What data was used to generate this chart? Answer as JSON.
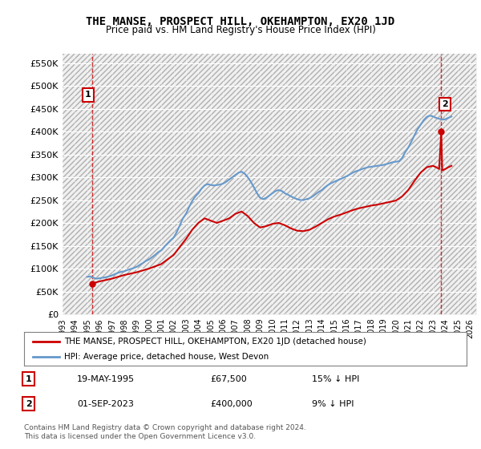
{
  "title": "THE MANSE, PROSPECT HILL, OKEHAMPTON, EX20 1JD",
  "subtitle": "Price paid vs. HM Land Registry's House Price Index (HPI)",
  "ylabel_ticks": [
    "£0",
    "£50K",
    "£100K",
    "£150K",
    "£200K",
    "£250K",
    "£300K",
    "£350K",
    "£400K",
    "£450K",
    "£500K",
    "£550K"
  ],
  "ylim": [
    0,
    570000
  ],
  "xlim_start": 1993.0,
  "xlim_end": 2026.5,
  "background_color": "#ffffff",
  "plot_bg_color": "#f0f0f0",
  "hatch_color": "#d0d0d0",
  "grid_color": "#ffffff",
  "sale1": {
    "date_num": 1995.38,
    "price": 67500,
    "label": "1",
    "color": "#cc0000"
  },
  "sale2": {
    "date_num": 2023.67,
    "price": 400000,
    "label": "2",
    "color": "#cc0000"
  },
  "legend_property": "THE MANSE, PROSPECT HILL, OKEHAMPTON, EX20 1JD (detached house)",
  "legend_hpi": "HPI: Average price, detached house, West Devon",
  "note1_label": "1",
  "note1_date": "19-MAY-1995",
  "note1_price": "£67,500",
  "note1_hpi": "15% ↓ HPI",
  "note2_label": "2",
  "note2_date": "01-SEP-2023",
  "note2_price": "£400,000",
  "note2_hpi": "9% ↓ HPI",
  "copyright": "Contains HM Land Registry data © Crown copyright and database right 2024.\nThis data is licensed under the Open Government Licence v3.0.",
  "line_property_color": "#cc0000",
  "line_hpi_color": "#6699cc",
  "hpi_data": [
    [
      1995.0,
      82000
    ],
    [
      1995.25,
      83000
    ],
    [
      1995.5,
      80000
    ],
    [
      1995.75,
      78000
    ],
    [
      1996.0,
      79000
    ],
    [
      1996.25,
      80000
    ],
    [
      1996.5,
      81000
    ],
    [
      1996.75,
      83000
    ],
    [
      1997.0,
      85000
    ],
    [
      1997.25,
      88000
    ],
    [
      1997.5,
      91000
    ],
    [
      1997.75,
      93000
    ],
    [
      1998.0,
      94000
    ],
    [
      1998.25,
      97000
    ],
    [
      1998.5,
      99000
    ],
    [
      1998.75,
      101000
    ],
    [
      1999.0,
      104000
    ],
    [
      1999.25,
      108000
    ],
    [
      1999.5,
      112000
    ],
    [
      1999.75,
      117000
    ],
    [
      2000.0,
      120000
    ],
    [
      2000.25,
      125000
    ],
    [
      2000.5,
      130000
    ],
    [
      2000.75,
      136000
    ],
    [
      2001.0,
      140000
    ],
    [
      2001.25,
      148000
    ],
    [
      2001.5,
      155000
    ],
    [
      2001.75,
      162000
    ],
    [
      2002.0,
      168000
    ],
    [
      2002.25,
      180000
    ],
    [
      2002.5,
      195000
    ],
    [
      2002.75,
      210000
    ],
    [
      2003.0,
      220000
    ],
    [
      2003.25,
      235000
    ],
    [
      2003.5,
      248000
    ],
    [
      2003.75,
      258000
    ],
    [
      2004.0,
      265000
    ],
    [
      2004.25,
      275000
    ],
    [
      2004.5,
      282000
    ],
    [
      2004.75,
      285000
    ],
    [
      2005.0,
      283000
    ],
    [
      2005.25,
      282000
    ],
    [
      2005.5,
      283000
    ],
    [
      2005.75,
      284000
    ],
    [
      2006.0,
      286000
    ],
    [
      2006.25,
      290000
    ],
    [
      2006.5,
      295000
    ],
    [
      2006.75,
      300000
    ],
    [
      2007.0,
      305000
    ],
    [
      2007.25,
      310000
    ],
    [
      2007.5,
      312000
    ],
    [
      2007.75,
      308000
    ],
    [
      2008.0,
      300000
    ],
    [
      2008.25,
      290000
    ],
    [
      2008.5,
      278000
    ],
    [
      2008.75,
      265000
    ],
    [
      2009.0,
      255000
    ],
    [
      2009.25,
      252000
    ],
    [
      2009.5,
      255000
    ],
    [
      2009.75,
      260000
    ],
    [
      2010.0,
      265000
    ],
    [
      2010.25,
      270000
    ],
    [
      2010.5,
      272000
    ],
    [
      2010.75,
      270000
    ],
    [
      2011.0,
      265000
    ],
    [
      2011.25,
      262000
    ],
    [
      2011.5,
      258000
    ],
    [
      2011.75,
      255000
    ],
    [
      2012.0,
      252000
    ],
    [
      2012.25,
      250000
    ],
    [
      2012.5,
      250000
    ],
    [
      2012.75,
      252000
    ],
    [
      2013.0,
      254000
    ],
    [
      2013.25,
      258000
    ],
    [
      2013.5,
      263000
    ],
    [
      2013.75,
      268000
    ],
    [
      2014.0,
      272000
    ],
    [
      2014.25,
      278000
    ],
    [
      2014.5,
      283000
    ],
    [
      2014.75,
      287000
    ],
    [
      2015.0,
      290000
    ],
    [
      2015.25,
      293000
    ],
    [
      2015.5,
      296000
    ],
    [
      2015.75,
      299000
    ],
    [
      2016.0,
      302000
    ],
    [
      2016.25,
      306000
    ],
    [
      2016.5,
      310000
    ],
    [
      2016.75,
      313000
    ],
    [
      2017.0,
      315000
    ],
    [
      2017.25,
      318000
    ],
    [
      2017.5,
      320000
    ],
    [
      2017.75,
      322000
    ],
    [
      2018.0,
      323000
    ],
    [
      2018.25,
      324000
    ],
    [
      2018.5,
      325000
    ],
    [
      2018.75,
      326000
    ],
    [
      2019.0,
      327000
    ],
    [
      2019.25,
      329000
    ],
    [
      2019.5,
      331000
    ],
    [
      2019.75,
      333000
    ],
    [
      2020.0,
      334000
    ],
    [
      2020.25,
      335000
    ],
    [
      2020.5,
      342000
    ],
    [
      2020.75,
      355000
    ],
    [
      2021.0,
      365000
    ],
    [
      2021.25,
      378000
    ],
    [
      2021.5,
      392000
    ],
    [
      2021.75,
      405000
    ],
    [
      2022.0,
      415000
    ],
    [
      2022.25,
      425000
    ],
    [
      2022.5,
      432000
    ],
    [
      2022.75,
      435000
    ],
    [
      2023.0,
      433000
    ],
    [
      2023.25,
      430000
    ],
    [
      2023.5,
      428000
    ],
    [
      2023.75,
      426000
    ],
    [
      2024.0,
      427000
    ],
    [
      2024.25,
      430000
    ],
    [
      2024.5,
      433000
    ]
  ],
  "property_hpi_data": [
    [
      1995.38,
      67500
    ],
    [
      1996.0,
      72000
    ],
    [
      1997.0,
      78000
    ],
    [
      1998.0,
      86000
    ],
    [
      1999.0,
      92000
    ],
    [
      2000.0,
      100000
    ],
    [
      2001.0,
      110000
    ],
    [
      2002.0,
      130000
    ],
    [
      2003.0,
      165000
    ],
    [
      2003.5,
      185000
    ],
    [
      2004.0,
      200000
    ],
    [
      2004.5,
      210000
    ],
    [
      2005.0,
      205000
    ],
    [
      2005.5,
      200000
    ],
    [
      2006.0,
      205000
    ],
    [
      2006.5,
      210000
    ],
    [
      2007.0,
      220000
    ],
    [
      2007.5,
      225000
    ],
    [
      2008.0,
      215000
    ],
    [
      2008.5,
      200000
    ],
    [
      2009.0,
      190000
    ],
    [
      2009.5,
      193000
    ],
    [
      2010.0,
      198000
    ],
    [
      2010.5,
      200000
    ],
    [
      2011.0,
      195000
    ],
    [
      2011.5,
      188000
    ],
    [
      2012.0,
      183000
    ],
    [
      2012.5,
      182000
    ],
    [
      2013.0,
      185000
    ],
    [
      2013.5,
      192000
    ],
    [
      2014.0,
      200000
    ],
    [
      2014.5,
      208000
    ],
    [
      2015.0,
      214000
    ],
    [
      2015.5,
      218000
    ],
    [
      2016.0,
      223000
    ],
    [
      2016.5,
      228000
    ],
    [
      2017.0,
      232000
    ],
    [
      2017.5,
      235000
    ],
    [
      2018.0,
      238000
    ],
    [
      2018.5,
      240000
    ],
    [
      2019.0,
      243000
    ],
    [
      2019.5,
      246000
    ],
    [
      2020.0,
      249000
    ],
    [
      2020.5,
      258000
    ],
    [
      2021.0,
      272000
    ],
    [
      2021.5,
      292000
    ],
    [
      2022.0,
      310000
    ],
    [
      2022.5,
      322000
    ],
    [
      2023.0,
      325000
    ],
    [
      2023.25,
      322000
    ],
    [
      2023.5,
      318000
    ],
    [
      2023.67,
      400000
    ],
    [
      2023.75,
      315000
    ],
    [
      2024.0,
      318000
    ],
    [
      2024.25,
      322000
    ],
    [
      2024.5,
      325000
    ]
  ],
  "xtick_years": [
    1993,
    1994,
    1995,
    1996,
    1997,
    1998,
    1999,
    2000,
    2001,
    2002,
    2003,
    2004,
    2005,
    2006,
    2007,
    2008,
    2009,
    2010,
    2011,
    2012,
    2013,
    2014,
    2015,
    2016,
    2017,
    2018,
    2019,
    2020,
    2021,
    2022,
    2023,
    2024,
    2025,
    2026
  ]
}
